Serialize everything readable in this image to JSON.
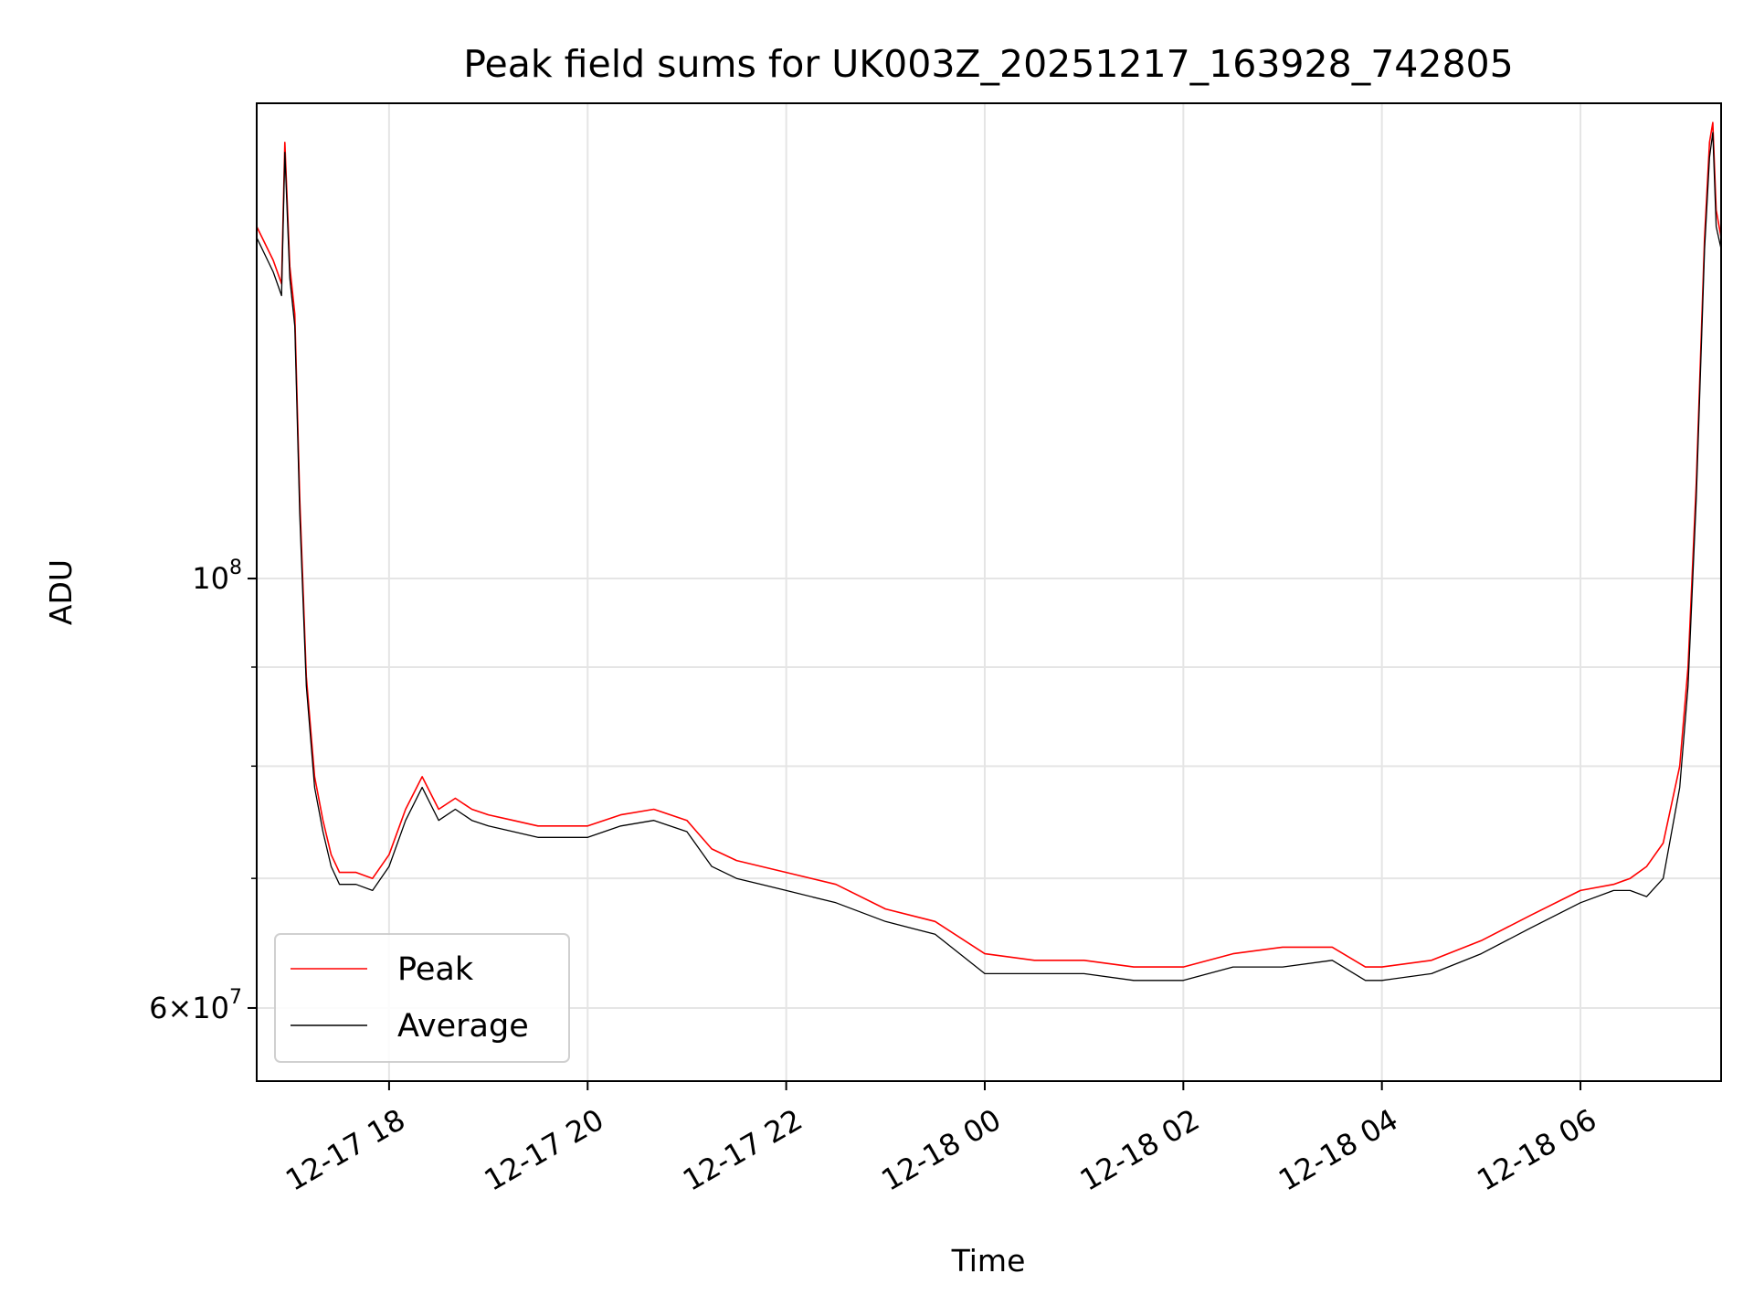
{
  "chart_data": {
    "type": "line",
    "title": "Peak field sums for UK003Z_20251217_163928_742805",
    "xlabel": "Time",
    "ylabel": "ADU",
    "yscale": "log",
    "grid": true,
    "legend_position": "lower-left",
    "xlim": [
      "2025-12-17 16:40",
      "2025-12-18 07:25"
    ],
    "ylim": [
      55000000,
      176000000
    ],
    "x_ticks": [
      {
        "value": "2025-12-17 18:00",
        "label": "12-17 18"
      },
      {
        "value": "2025-12-17 20:00",
        "label": "12-17 20"
      },
      {
        "value": "2025-12-17 22:00",
        "label": "12-17 22"
      },
      {
        "value": "2025-12-18 00:00",
        "label": "12-18 00"
      },
      {
        "value": "2025-12-18 02:00",
        "label": "12-18 02"
      },
      {
        "value": "2025-12-18 04:00",
        "label": "12-18 04"
      },
      {
        "value": "2025-12-18 06:00",
        "label": "12-18 06"
      }
    ],
    "y_ticks_major": [
      {
        "value": 60000000,
        "base": "6×10",
        "exp": "7"
      },
      {
        "value": 100000000,
        "base": "10",
        "exp": "8"
      }
    ],
    "y_ticks_minor": [
      70000000,
      80000000,
      90000000
    ],
    "series": [
      {
        "name": "Peak",
        "color": "#ff0000",
        "x": [
          "2025-12-17 16:40",
          "2025-12-17 16:50",
          "2025-12-17 16:55",
          "2025-12-17 16:57",
          "2025-12-17 17:00",
          "2025-12-17 17:03",
          "2025-12-17 17:06",
          "2025-12-17 17:10",
          "2025-12-17 17:15",
          "2025-12-17 17:20",
          "2025-12-17 17:25",
          "2025-12-17 17:30",
          "2025-12-17 17:40",
          "2025-12-17 17:50",
          "2025-12-17 18:00",
          "2025-12-17 18:10",
          "2025-12-17 18:20",
          "2025-12-17 18:30",
          "2025-12-17 18:40",
          "2025-12-17 18:50",
          "2025-12-17 19:00",
          "2025-12-17 19:15",
          "2025-12-17 19:30",
          "2025-12-17 19:45",
          "2025-12-17 20:00",
          "2025-12-17 20:20",
          "2025-12-17 20:40",
          "2025-12-17 21:00",
          "2025-12-17 21:15",
          "2025-12-17 21:30",
          "2025-12-17 21:45",
          "2025-12-17 22:00",
          "2025-12-17 22:30",
          "2025-12-17 23:00",
          "2025-12-17 23:30",
          "2025-12-18 00:00",
          "2025-12-18 00:30",
          "2025-12-18 01:00",
          "2025-12-18 01:30",
          "2025-12-18 02:00",
          "2025-12-18 02:30",
          "2025-12-18 03:00",
          "2025-12-18 03:30",
          "2025-12-18 03:50",
          "2025-12-18 04:00",
          "2025-12-18 04:30",
          "2025-12-18 05:00",
          "2025-12-18 05:30",
          "2025-12-18 06:00",
          "2025-12-18 06:20",
          "2025-12-18 06:30",
          "2025-12-18 06:40",
          "2025-12-18 06:50",
          "2025-12-18 07:00",
          "2025-12-18 07:05",
          "2025-12-18 07:10",
          "2025-12-18 07:15",
          "2025-12-18 07:18",
          "2025-12-18 07:20",
          "2025-12-18 07:22",
          "2025-12-18 07:25"
        ],
        "y": [
          152000000,
          146000000,
          142000000,
          168000000,
          145000000,
          137000000,
          110000000,
          89000000,
          79000000,
          75000000,
          72000000,
          70500000,
          70500000,
          70000000,
          72000000,
          76000000,
          79000000,
          76000000,
          77000000,
          76000000,
          75500000,
          75000000,
          74500000,
          74500000,
          74500000,
          75500000,
          76000000,
          75000000,
          72500000,
          71500000,
          71000000,
          70500000,
          69500000,
          67500000,
          66500000,
          64000000,
          63500000,
          63500000,
          63000000,
          63000000,
          64000000,
          64500000,
          64500000,
          63000000,
          63000000,
          63500000,
          65000000,
          67000000,
          69000000,
          69500000,
          70000000,
          71000000,
          73000000,
          80000000,
          90000000,
          112000000,
          150000000,
          168000000,
          172000000,
          155000000,
          150000000
        ]
      },
      {
        "name": "Average",
        "color": "#000000",
        "x": [
          "2025-12-17 16:40",
          "2025-12-17 16:50",
          "2025-12-17 16:55",
          "2025-12-17 16:57",
          "2025-12-17 17:00",
          "2025-12-17 17:03",
          "2025-12-17 17:06",
          "2025-12-17 17:10",
          "2025-12-17 17:15",
          "2025-12-17 17:20",
          "2025-12-17 17:25",
          "2025-12-17 17:30",
          "2025-12-17 17:40",
          "2025-12-17 17:50",
          "2025-12-17 18:00",
          "2025-12-17 18:10",
          "2025-12-17 18:20",
          "2025-12-17 18:30",
          "2025-12-17 18:40",
          "2025-12-17 18:50",
          "2025-12-17 19:00",
          "2025-12-17 19:15",
          "2025-12-17 19:30",
          "2025-12-17 19:45",
          "2025-12-17 20:00",
          "2025-12-17 20:20",
          "2025-12-17 20:40",
          "2025-12-17 21:00",
          "2025-12-17 21:15",
          "2025-12-17 21:30",
          "2025-12-17 21:45",
          "2025-12-17 22:00",
          "2025-12-17 22:30",
          "2025-12-17 23:00",
          "2025-12-17 23:30",
          "2025-12-18 00:00",
          "2025-12-18 00:30",
          "2025-12-18 01:00",
          "2025-12-18 01:30",
          "2025-12-18 02:00",
          "2025-12-18 02:30",
          "2025-12-18 03:00",
          "2025-12-18 03:30",
          "2025-12-18 03:50",
          "2025-12-18 04:00",
          "2025-12-18 04:30",
          "2025-12-18 05:00",
          "2025-12-18 05:30",
          "2025-12-18 06:00",
          "2025-12-18 06:20",
          "2025-12-18 06:30",
          "2025-12-18 06:40",
          "2025-12-18 06:50",
          "2025-12-18 07:00",
          "2025-12-18 07:05",
          "2025-12-18 07:10",
          "2025-12-18 07:15",
          "2025-12-18 07:18",
          "2025-12-18 07:20",
          "2025-12-18 07:22",
          "2025-12-18 07:25"
        ],
        "y": [
          150000000,
          144000000,
          140000000,
          166000000,
          143000000,
          135000000,
          108000000,
          88000000,
          78000000,
          74000000,
          71000000,
          69500000,
          69500000,
          69000000,
          71000000,
          75000000,
          78000000,
          75000000,
          76000000,
          75000000,
          74500000,
          74000000,
          73500000,
          73500000,
          73500000,
          74500000,
          75000000,
          74000000,
          71000000,
          70000000,
          69500000,
          69000000,
          68000000,
          66500000,
          65500000,
          62500000,
          62500000,
          62500000,
          62000000,
          62000000,
          63000000,
          63000000,
          63500000,
          62000000,
          62000000,
          62500000,
          64000000,
          66000000,
          68000000,
          69000000,
          69000000,
          68500000,
          70000000,
          78000000,
          88000000,
          110000000,
          148000000,
          165000000,
          170000000,
          152000000,
          148000000
        ]
      }
    ]
  }
}
